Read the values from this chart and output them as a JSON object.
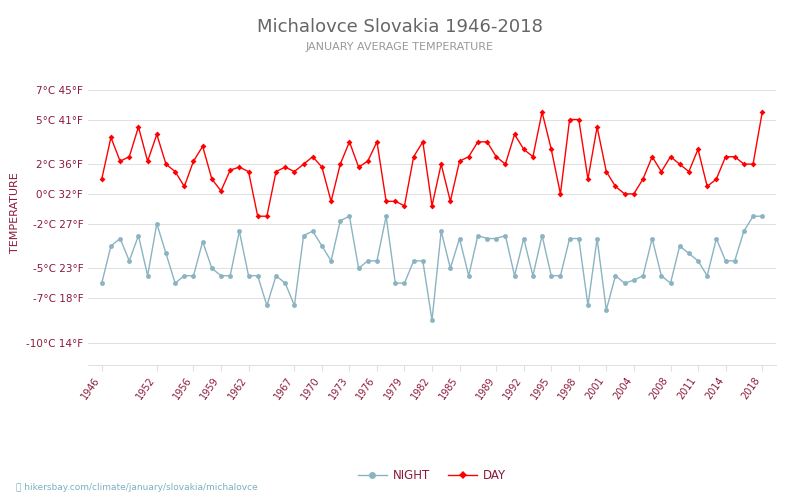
{
  "title": "Michalovce Slovakia 1946-2018",
  "subtitle": "JANUARY AVERAGE TEMPERATURE",
  "ylabel": "TEMPERATURE",
  "xlabel_url": "hikersbay.com/climate/january/slovakia/michalovce",
  "years": [
    1946,
    1947,
    1948,
    1949,
    1950,
    1951,
    1952,
    1953,
    1954,
    1955,
    1956,
    1957,
    1958,
    1959,
    1960,
    1961,
    1962,
    1963,
    1964,
    1965,
    1966,
    1967,
    1968,
    1969,
    1970,
    1971,
    1972,
    1973,
    1974,
    1975,
    1976,
    1977,
    1978,
    1979,
    1980,
    1981,
    1982,
    1983,
    1984,
    1985,
    1986,
    1987,
    1988,
    1989,
    1990,
    1991,
    1992,
    1993,
    1994,
    1995,
    1996,
    1997,
    1998,
    1999,
    2000,
    2001,
    2002,
    2003,
    2004,
    2005,
    2006,
    2007,
    2008,
    2009,
    2010,
    2011,
    2012,
    2013,
    2014,
    2015,
    2016,
    2017,
    2018
  ],
  "day_temps": [
    1.0,
    3.8,
    2.2,
    2.5,
    4.5,
    2.2,
    4.0,
    2.0,
    1.5,
    0.5,
    2.2,
    3.2,
    1.0,
    0.2,
    1.6,
    1.8,
    1.5,
    -1.5,
    -1.5,
    1.5,
    1.8,
    1.5,
    2.0,
    2.5,
    1.8,
    -0.5,
    2.0,
    3.5,
    1.8,
    2.2,
    3.5,
    -0.5,
    -0.5,
    -0.8,
    2.5,
    3.5,
    -0.8,
    2.0,
    -0.5,
    2.2,
    2.5,
    3.5,
    3.5,
    2.5,
    2.0,
    4.0,
    3.0,
    2.5,
    5.5,
    3.0,
    0.0,
    5.0,
    5.0,
    1.0,
    4.5,
    1.5,
    0.5,
    0.0,
    0.0,
    1.0,
    2.5,
    1.5,
    2.5,
    2.0,
    1.5,
    3.0,
    0.5,
    1.0,
    2.5,
    2.5,
    2.0,
    2.0,
    5.5
  ],
  "night_temps": [
    -6.0,
    -3.5,
    -3.0,
    -4.5,
    -2.8,
    -5.5,
    -2.0,
    -4.0,
    -6.0,
    -5.5,
    -5.5,
    -3.2,
    -5.0,
    -5.5,
    -5.5,
    -2.5,
    -5.5,
    -5.5,
    -7.5,
    -5.5,
    -6.0,
    -7.5,
    -2.8,
    -2.5,
    -3.5,
    -4.5,
    -1.8,
    -1.5,
    -5.0,
    -4.5,
    -4.5,
    -1.5,
    -6.0,
    -6.0,
    -4.5,
    -4.5,
    -8.5,
    -2.5,
    -5.0,
    -3.0,
    -5.5,
    -2.8,
    -3.0,
    -3.0,
    -2.8,
    -5.5,
    -3.0,
    -5.5,
    -2.8,
    -5.5,
    -5.5,
    -3.0,
    -3.0,
    -7.5,
    -3.0,
    -7.8,
    -5.5,
    -6.0,
    -5.8,
    -5.5,
    -3.0,
    -5.5,
    -6.0,
    -3.5,
    -4.0,
    -4.5,
    -5.5,
    -3.0,
    -4.5,
    -4.5,
    -2.5,
    -1.5,
    -1.5
  ],
  "day_color": "#ff0000",
  "night_color": "#8ab4c2",
  "background_color": "#ffffff",
  "grid_color": "#e0e0e0",
  "title_color": "#666666",
  "subtitle_color": "#999999",
  "label_color": "#8b1a3a",
  "yticks_c": [
    -10,
    -7,
    -5,
    -2,
    0,
    2,
    5,
    7
  ],
  "yticks_f": [
    14,
    18,
    23,
    27,
    32,
    36,
    41,
    45
  ],
  "xtick_years": [
    1946,
    1952,
    1956,
    1959,
    1962,
    1967,
    1970,
    1973,
    1976,
    1979,
    1982,
    1985,
    1989,
    1992,
    1995,
    1998,
    2001,
    2004,
    2008,
    2011,
    2014,
    2018
  ],
  "ylim": [
    -11.5,
    9.0
  ],
  "xlim": [
    1944.5,
    2019.5
  ]
}
